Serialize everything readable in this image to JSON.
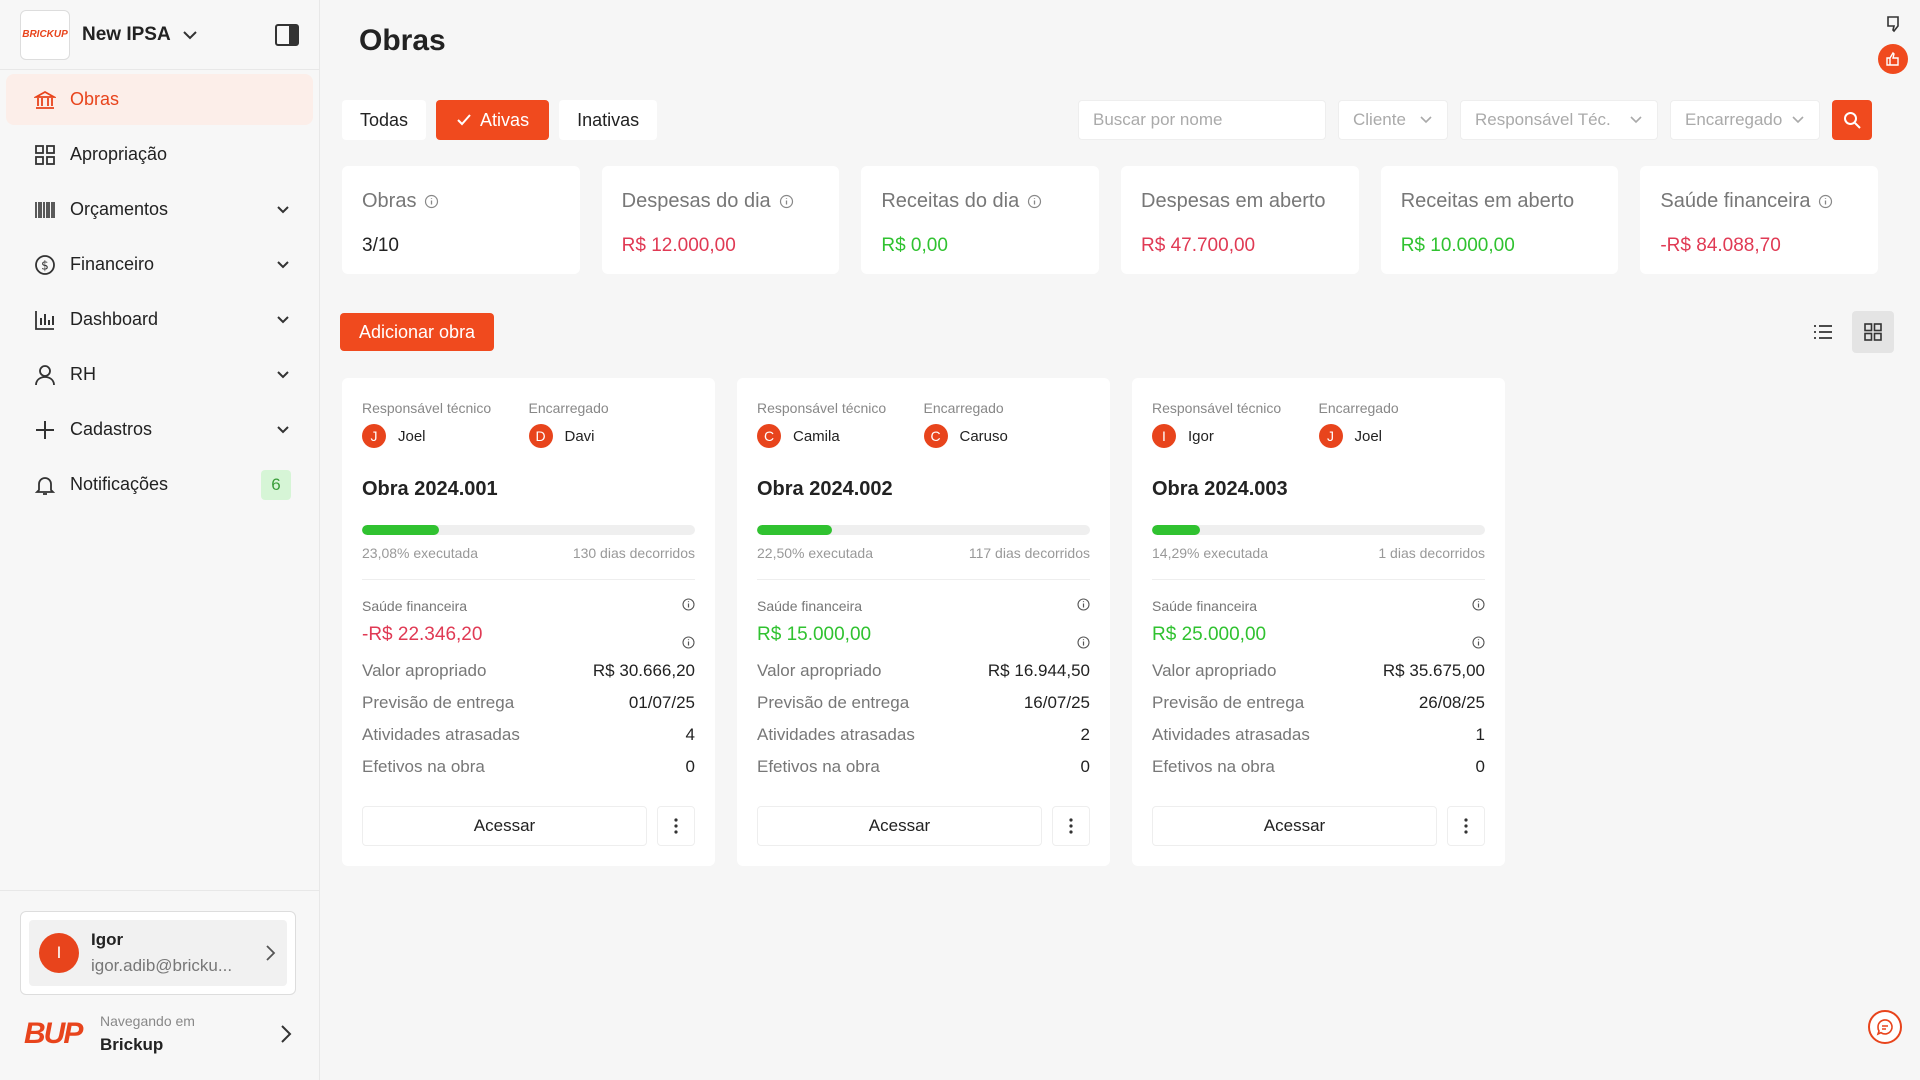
{
  "sidebar": {
    "org_name": "New IPSA",
    "logo_text": "BRICKUP",
    "items": [
      {
        "label": "Obras",
        "icon": "bank-icon"
      },
      {
        "label": "Apropriação",
        "icon": "grid-icon"
      },
      {
        "label": "Orçamentos",
        "icon": "barcode-icon"
      },
      {
        "label": "Financeiro",
        "icon": "dollar-circle-icon"
      },
      {
        "label": "Dashboard",
        "icon": "bar-chart-icon"
      },
      {
        "label": "RH",
        "icon": "user-icon"
      },
      {
        "label": "Cadastros",
        "icon": "plus-icon"
      },
      {
        "label": "Notificações",
        "icon": "bell-icon",
        "badge": "6"
      }
    ],
    "user": {
      "initial": "I",
      "name": "Igor",
      "email": "igor.adib@bricku..."
    },
    "navigating": {
      "label": "Navegando em",
      "org": "Brickup",
      "logo_text": "BUP"
    }
  },
  "header": {
    "title": "Obras"
  },
  "filters": {
    "tabs": [
      "Todas",
      "Ativas",
      "Inativas"
    ],
    "search_placeholder": "Buscar por nome",
    "cliente": "Cliente",
    "responsavel": "Responsável Téc.",
    "encarregado": "Encarregado"
  },
  "stats": [
    {
      "label": "Obras",
      "value": "3/10",
      "info": true
    },
    {
      "label": "Despesas do dia",
      "value": "R$ 12.000,00",
      "info": true,
      "color": "red"
    },
    {
      "label": "Receitas do dia",
      "value": "R$ 0,00",
      "info": true,
      "color": "green"
    },
    {
      "label": "Despesas em aberto",
      "value": "R$ 47.700,00",
      "color": "red"
    },
    {
      "label": "Receitas em aberto",
      "value": "R$ 10.000,00",
      "color": "green"
    },
    {
      "label": "Saúde financeira",
      "value": "-R$ 84.088,70",
      "info": true,
      "color": "red"
    }
  ],
  "add_button": "Adicionar obra",
  "card_labels": {
    "responsavel": "Responsável técnico",
    "encarregado": "Encarregado",
    "saude": "Saúde financeira",
    "valor": "Valor apropriado",
    "previsao": "Previsão de entrega",
    "atrasadas": "Atividades atrasadas",
    "efetivos": "Efetivos na obra",
    "acessar": "Acessar"
  },
  "obras": [
    {
      "title": "Obra 2024.001",
      "resp": "Joel",
      "resp_initial": "J",
      "enc": "Davi",
      "enc_initial": "D",
      "progress": 23.08,
      "executada": "23,08% executada",
      "dias": "130 dias decorridos",
      "saude": "-R$ 22.346,20",
      "saude_color": "red",
      "valor": "R$ 30.666,20",
      "previsao": "01/07/25",
      "atrasadas": "4",
      "efetivos": "0"
    },
    {
      "title": "Obra 2024.002",
      "resp": "Camila",
      "resp_initial": "C",
      "enc": "Caruso",
      "enc_initial": "C",
      "progress": 22.5,
      "executada": "22,50% executada",
      "dias": "117 dias decorridos",
      "saude": "R$ 15.000,00",
      "saude_color": "green",
      "valor": "R$ 16.944,50",
      "previsao": "16/07/25",
      "atrasadas": "2",
      "efetivos": "0"
    },
    {
      "title": "Obra 2024.003",
      "resp": "Igor",
      "resp_initial": "I",
      "enc": "Joel",
      "enc_initial": "J",
      "progress": 14.29,
      "executada": "14,29% executada",
      "dias": "1 dias decorridos",
      "saude": "R$ 25.000,00",
      "saude_color": "green",
      "valor": "R$ 35.675,00",
      "previsao": "26/08/25",
      "atrasadas": "1",
      "efetivos": "0"
    }
  ],
  "colors": {
    "accent": "#f04a1e",
    "red": "#e03a54",
    "green": "#30c230"
  }
}
